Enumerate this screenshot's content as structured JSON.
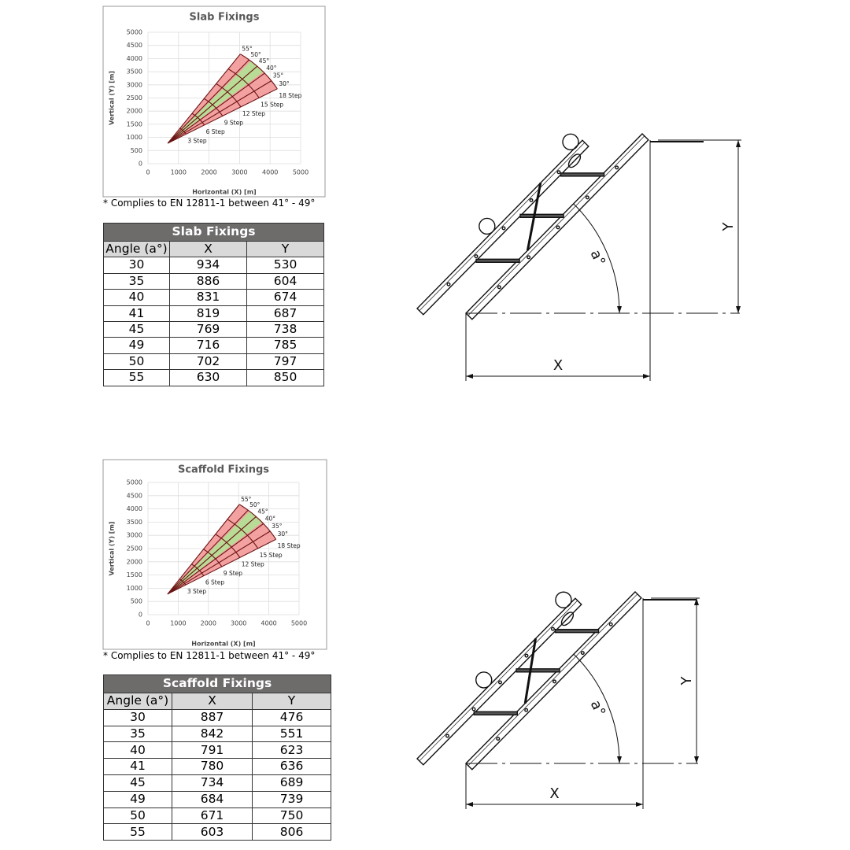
{
  "sections": [
    {
      "chart": {
        "title": "Slab Fixings",
        "x_label": "Horizontal (X) [m]",
        "y_label": "Vertical (Y) [m]",
        "xlim": [
          0,
          5000
        ],
        "ylim": [
          0,
          5000
        ],
        "xticks": [
          0,
          1000,
          2000,
          3000,
          4000,
          5000
        ],
        "yticks": [
          0,
          500,
          1000,
          1500,
          2000,
          2500,
          3000,
          3500,
          4000,
          4500,
          5000
        ],
        "grid": true,
        "angles": [
          {
            "value": 55,
            "label": "55°"
          },
          {
            "value": 50,
            "label": "50°"
          },
          {
            "value": 45,
            "label": "45°"
          },
          {
            "value": 40,
            "label": "40°"
          },
          {
            "value": 35,
            "label": "35°"
          },
          {
            "value": 30,
            "label": "30°"
          }
        ],
        "steps": [
          {
            "value": 18,
            "label": "18 Step"
          },
          {
            "value": 15,
            "label": "15 Step"
          },
          {
            "value": 12,
            "label": "12 Step"
          },
          {
            "value": 9,
            "label": "9 Step"
          },
          {
            "value": 6,
            "label": "6 Step"
          },
          {
            "value": 3,
            "label": "3 Step"
          }
        ],
        "compliant_range": [
          41,
          49
        ]
      },
      "note": "* Complies to EN 12811-1 between 41° - 49°",
      "table": {
        "title": "Slab Fixings",
        "header": [
          "Angle (a°)",
          "X",
          "Y"
        ],
        "rows": [
          [
            30,
            934,
            530
          ],
          [
            35,
            886,
            604
          ],
          [
            40,
            831,
            674
          ],
          [
            41,
            819,
            687
          ],
          [
            45,
            769,
            738
          ],
          [
            49,
            716,
            785
          ],
          [
            50,
            702,
            797
          ],
          [
            55,
            630,
            850
          ]
        ]
      },
      "diagram": {
        "y_label": "Y",
        "angle_label": "a°",
        "x_label": "X"
      }
    },
    {
      "chart": {
        "title": "Scaffold Fixings",
        "x_label": "Horizontal (X) [m]",
        "y_label": "Vertical (Y) [m]",
        "xlim": [
          0,
          5000
        ],
        "ylim": [
          0,
          5000
        ],
        "xticks": [
          0,
          1000,
          2000,
          3000,
          4000,
          5000
        ],
        "yticks": [
          0,
          500,
          1000,
          1500,
          2000,
          2500,
          3000,
          3500,
          4000,
          4500,
          5000
        ],
        "grid": true,
        "angles": [
          {
            "value": 55,
            "label": "55°"
          },
          {
            "value": 50,
            "label": "50°"
          },
          {
            "value": 45,
            "label": "45°"
          },
          {
            "value": 40,
            "label": "40°"
          },
          {
            "value": 35,
            "label": "35°"
          },
          {
            "value": 30,
            "label": "30°"
          }
        ],
        "steps": [
          {
            "value": 18,
            "label": "18 Step"
          },
          {
            "value": 15,
            "label": "15 Step"
          },
          {
            "value": 12,
            "label": "12 Step"
          },
          {
            "value": 9,
            "label": "9 Step"
          },
          {
            "value": 6,
            "label": "6 Step"
          },
          {
            "value": 3,
            "label": "3 Step"
          }
        ],
        "compliant_range": [
          41,
          49
        ]
      },
      "note": "* Complies to EN 12811-1 between 41° - 49°",
      "table": {
        "title": "Scaffold Fixings",
        "header": [
          "Angle (a°)",
          "X",
          "Y"
        ],
        "rows": [
          [
            30,
            887,
            476
          ],
          [
            35,
            842,
            551
          ],
          [
            40,
            791,
            623
          ],
          [
            41,
            780,
            636
          ],
          [
            45,
            734,
            689
          ],
          [
            49,
            684,
            739
          ],
          [
            50,
            671,
            750
          ],
          [
            55,
            603,
            806
          ]
        ]
      },
      "diagram": {
        "y_label": "Y",
        "angle_label": "a°",
        "x_label": "X"
      }
    }
  ]
}
